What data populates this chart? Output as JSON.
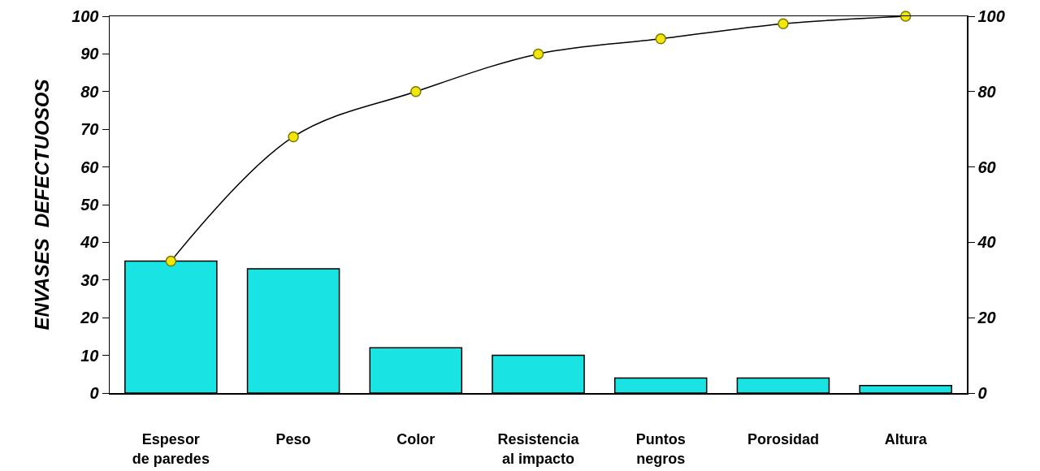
{
  "chart_data": {
    "type": "bar",
    "ylabel": "ENVASES  DEFECTUOSOS",
    "categories": [
      "Espesor\nde paredes",
      "Peso",
      "Color",
      "Resistencia\nal impacto",
      "Puntos\nnegros",
      "Porosidad",
      "Altura"
    ],
    "series": [
      {
        "color": "#1ae3e3",
        "values": [
          35,
          33,
          12,
          10,
          4,
          4,
          2
        ]
      },
      {
        "type": "line",
        "axis": "y2",
        "color": "#000000",
        "marker": "circle",
        "line_style": "solid",
        "values": [
          35,
          68,
          80,
          90,
          94,
          98,
          100
        ]
      }
    ],
    "ylim": [
      0,
      100
    ],
    "yticks": [
      0,
      10,
      20,
      30,
      40,
      50,
      60,
      70,
      80,
      90,
      100
    ],
    "y2lim": [
      0,
      100
    ],
    "y2ticks": [
      0,
      20,
      40,
      60,
      80,
      100
    ],
    "grid": false
  }
}
